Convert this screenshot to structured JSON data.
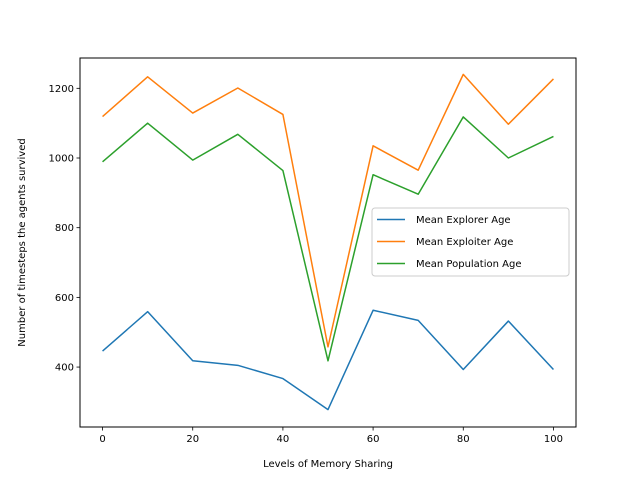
{
  "chart_data": {
    "type": "line",
    "title": "",
    "xlabel": "Levels of Memory Sharing",
    "ylabel": "Number of timesteps the agents survived",
    "x": [
      0,
      10,
      20,
      30,
      40,
      50,
      60,
      70,
      80,
      90,
      100
    ],
    "xlim": [
      -5,
      105
    ],
    "ylim": [
      228,
      1287
    ],
    "xticks": [
      0,
      20,
      40,
      60,
      80,
      100
    ],
    "yticks": [
      400,
      600,
      800,
      1000,
      1200
    ],
    "grid": false,
    "legend_position": "center-right",
    "series": [
      {
        "name": "Mean Explorer Age",
        "color": "#1f77b4",
        "values": [
          446,
          559,
          418,
          405,
          367,
          278,
          563,
          534,
          393,
          532,
          393
        ]
      },
      {
        "name": "Mean Exploiter Age",
        "color": "#ff7f0e",
        "values": [
          1119,
          1233,
          1129,
          1201,
          1125,
          458,
          1035,
          965,
          1240,
          1097,
          1227
        ]
      },
      {
        "name": "Mean Population Age",
        "color": "#2ca02c",
        "values": [
          989,
          1100,
          994,
          1068,
          964,
          418,
          952,
          896,
          1118,
          1000,
          1062
        ]
      }
    ]
  }
}
